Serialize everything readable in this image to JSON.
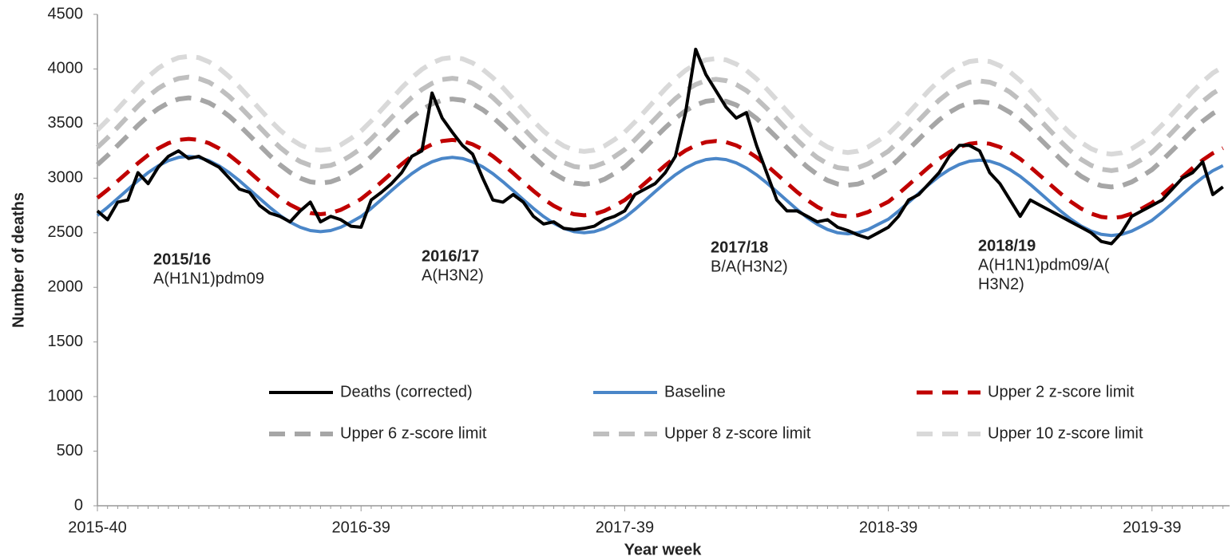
{
  "chart_data": {
    "type": "line",
    "y_label": "Number of deaths",
    "x_label": "Year week",
    "ylim": [
      0,
      4500
    ],
    "yticks": [
      0,
      500,
      1000,
      1500,
      2000,
      2500,
      3000,
      3500,
      4000,
      4500
    ],
    "categories": [
      "2015-40",
      null,
      null,
      null,
      null,
      null,
      null,
      null,
      null,
      null,
      null,
      null,
      null,
      null,
      null,
      null,
      null,
      null,
      null,
      null,
      null,
      null,
      null,
      null,
      null,
      null,
      "2016-39",
      null,
      null,
      null,
      null,
      null,
      null,
      null,
      null,
      null,
      null,
      null,
      null,
      null,
      null,
      null,
      null,
      null,
      null,
      null,
      null,
      null,
      null,
      null,
      null,
      null,
      "2017-39",
      null,
      null,
      null,
      null,
      null,
      null,
      null,
      null,
      null,
      null,
      null,
      null,
      null,
      null,
      null,
      null,
      null,
      null,
      null,
      null,
      null,
      null,
      null,
      null,
      null,
      "2018-39",
      null,
      null,
      null,
      null,
      null,
      null,
      null,
      null,
      null,
      null,
      null,
      null,
      null,
      null,
      null,
      null,
      null,
      null,
      null,
      null,
      null,
      null,
      null,
      null,
      null,
      "2019-39",
      null,
      null,
      null,
      null,
      null,
      null,
      null
    ],
    "series": [
      {
        "name": "Deaths (corrected)",
        "color": "#000000",
        "dashed": false,
        "values": [
          2700,
          2620,
          2780,
          2800,
          3050,
          2950,
          3100,
          3200,
          3250,
          3180,
          3200,
          3150,
          3100,
          3000,
          2900,
          2870,
          2750,
          2680,
          2650,
          2600,
          2700,
          2780,
          2600,
          2650,
          2620,
          2560,
          2550,
          2800,
          2870,
          2950,
          3050,
          3200,
          3250,
          3780,
          3550,
          3420,
          3300,
          3220,
          3000,
          2800,
          2780,
          2850,
          2780,
          2650,
          2580,
          2600,
          2540,
          2530,
          2540,
          2560,
          2620,
          2650,
          2700,
          2850,
          2900,
          2950,
          3050,
          3200,
          3600,
          4180,
          3950,
          3800,
          3650,
          3550,
          3600,
          3300,
          3050,
          2800,
          2700,
          2700,
          2650,
          2600,
          2620,
          2550,
          2520,
          2480,
          2450,
          2500,
          2550,
          2650,
          2800,
          2850,
          2950,
          3050,
          3200,
          3300,
          3300,
          3250,
          3050,
          2950,
          2800,
          2650,
          2800,
          2750,
          2700,
          2650,
          2600,
          2550,
          2500,
          2420,
          2400,
          2500,
          2650,
          2700,
          2750,
          2800,
          2900,
          3000,
          3050,
          3150,
          2850,
          2920
        ]
      },
      {
        "name": "Baseline",
        "color": "#4a86c8",
        "dashed": false,
        "values": [
          2659,
          2733,
          2814,
          2896,
          2977,
          3051,
          3113,
          3160,
          3190,
          3200,
          3190,
          3160,
          3113,
          3051,
          2977,
          2896,
          2814,
          2733,
          2659,
          2597,
          2550,
          2520,
          2510,
          2520,
          2550,
          2597,
          2649,
          2723,
          2804,
          2886,
          2967,
          3041,
          3103,
          3150,
          3180,
          3190,
          3180,
          3150,
          3103,
          3041,
          2967,
          2886,
          2804,
          2723,
          2649,
          2587,
          2540,
          2510,
          2500,
          2510,
          2540,
          2587,
          2639,
          2713,
          2794,
          2876,
          2957,
          3031,
          3093,
          3140,
          3170,
          3180,
          3170,
          3140,
          3093,
          3031,
          2957,
          2876,
          2794,
          2713,
          2639,
          2577,
          2530,
          2500,
          2490,
          2500,
          2530,
          2577,
          2624,
          2698,
          2779,
          2861,
          2942,
          3016,
          3078,
          3125,
          3155,
          3165,
          3155,
          3125,
          3078,
          3016,
          2942,
          2861,
          2779,
          2698,
          2624,
          2562,
          2515,
          2485,
          2475,
          2485,
          2515,
          2562,
          2614,
          2688,
          2769,
          2851,
          2932,
          3006,
          3068,
          3115
        ]
      },
      {
        "name": "Upper 2 z-score limit",
        "color": "#c00000",
        "dashed": true,
        "values": [
          2819,
          2893,
          2974,
          3056,
          3137,
          3211,
          3273,
          3320,
          3350,
          3360,
          3350,
          3320,
          3273,
          3211,
          3137,
          3056,
          2974,
          2893,
          2819,
          2757,
          2710,
          2680,
          2670,
          2680,
          2710,
          2757,
          2809,
          2883,
          2964,
          3046,
          3127,
          3201,
          3263,
          3310,
          3340,
          3350,
          3340,
          3310,
          3263,
          3201,
          3127,
          3046,
          2964,
          2883,
          2809,
          2747,
          2700,
          2670,
          2660,
          2670,
          2700,
          2747,
          2799,
          2873,
          2954,
          3036,
          3117,
          3191,
          3253,
          3300,
          3330,
          3340,
          3330,
          3300,
          3253,
          3191,
          3117,
          3036,
          2954,
          2873,
          2799,
          2737,
          2690,
          2660,
          2650,
          2660,
          2690,
          2737,
          2784,
          2858,
          2939,
          3021,
          3102,
          3176,
          3238,
          3285,
          3315,
          3325,
          3315,
          3285,
          3238,
          3176,
          3102,
          3021,
          2939,
          2858,
          2784,
          2722,
          2675,
          2645,
          2635,
          2645,
          2675,
          2722,
          2774,
          2848,
          2929,
          3011,
          3092,
          3166,
          3228,
          3275
        ]
      },
      {
        "name": "Upper 6 z-score limit",
        "color": "#a6a6a6",
        "dashed": true,
        "values": [
          3123,
          3207,
          3299,
          3391,
          3483,
          3567,
          3637,
          3690,
          3724,
          3735,
          3724,
          3690,
          3637,
          3567,
          3483,
          3391,
          3299,
          3207,
          3123,
          3053,
          3000,
          2966,
          2955,
          2966,
          3000,
          3053,
          3113,
          3197,
          3289,
          3381,
          3473,
          3557,
          3627,
          3680,
          3714,
          3725,
          3714,
          3680,
          3627,
          3557,
          3473,
          3381,
          3289,
          3197,
          3113,
          3043,
          2990,
          2956,
          2945,
          2956,
          2990,
          3043,
          3103,
          3187,
          3279,
          3371,
          3463,
          3547,
          3617,
          3670,
          3704,
          3715,
          3704,
          3670,
          3617,
          3547,
          3463,
          3371,
          3279,
          3187,
          3103,
          3033,
          2980,
          2946,
          2935,
          2946,
          2980,
          3033,
          3088,
          3172,
          3264,
          3356,
          3448,
          3532,
          3602,
          3655,
          3689,
          3700,
          3689,
          3655,
          3602,
          3532,
          3448,
          3356,
          3264,
          3172,
          3088,
          3018,
          2965,
          2931,
          2920,
          2931,
          2965,
          3018,
          3078,
          3162,
          3254,
          3346,
          3438,
          3522,
          3592,
          3645
        ]
      },
      {
        "name": "Upper 8 z-score limit",
        "color": "#bfbfbf",
        "dashed": true,
        "values": [
          3282,
          3370,
          3466,
          3564,
          3660,
          3748,
          3822,
          3878,
          3913,
          3925,
          3913,
          3878,
          3822,
          3748,
          3660,
          3564,
          3466,
          3370,
          3282,
          3208,
          3152,
          3117,
          3105,
          3117,
          3152,
          3208,
          3272,
          3360,
          3456,
          3554,
          3650,
          3738,
          3812,
          3868,
          3903,
          3915,
          3903,
          3868,
          3812,
          3738,
          3650,
          3554,
          3456,
          3360,
          3272,
          3198,
          3142,
          3107,
          3095,
          3107,
          3142,
          3198,
          3262,
          3350,
          3446,
          3544,
          3640,
          3728,
          3802,
          3858,
          3893,
          3905,
          3893,
          3858,
          3802,
          3728,
          3640,
          3544,
          3446,
          3350,
          3262,
          3188,
          3132,
          3097,
          3085,
          3097,
          3132,
          3188,
          3247,
          3335,
          3431,
          3529,
          3625,
          3713,
          3787,
          3843,
          3878,
          3890,
          3878,
          3843,
          3787,
          3713,
          3625,
          3529,
          3431,
          3335,
          3247,
          3173,
          3117,
          3082,
          3070,
          3082,
          3117,
          3173,
          3237,
          3325,
          3421,
          3519,
          3615,
          3703,
          3777,
          3833
        ]
      },
      {
        "name": "Upper 10 z-score limit",
        "color": "#d9d9d9",
        "dashed": true,
        "values": [
          3441,
          3533,
          3634,
          3736,
          3837,
          3929,
          4007,
          4065,
          4103,
          4115,
          4103,
          4065,
          4007,
          3929,
          3837,
          3736,
          3634,
          3533,
          3441,
          3363,
          3305,
          3267,
          3255,
          3267,
          3305,
          3363,
          3431,
          3523,
          3624,
          3726,
          3827,
          3919,
          3997,
          4055,
          4093,
          4105,
          4093,
          4055,
          3997,
          3919,
          3827,
          3726,
          3624,
          3523,
          3431,
          3353,
          3295,
          3257,
          3245,
          3257,
          3295,
          3353,
          3421,
          3513,
          3614,
          3716,
          3817,
          3909,
          3987,
          4045,
          4083,
          4095,
          4083,
          4045,
          3987,
          3909,
          3817,
          3716,
          3614,
          3513,
          3421,
          3343,
          3285,
          3247,
          3235,
          3247,
          3285,
          3343,
          3406,
          3498,
          3599,
          3701,
          3802,
          3894,
          3972,
          4030,
          4068,
          4080,
          4068,
          4030,
          3972,
          3894,
          3802,
          3701,
          3599,
          3498,
          3406,
          3328,
          3270,
          3232,
          3220,
          3232,
          3270,
          3328,
          3396,
          3488,
          3589,
          3691,
          3792,
          3884,
          3962,
          4020
        ]
      }
    ],
    "annotations": [
      {
        "title": "2015/16",
        "lines": [
          "A(H1N1)pdm09"
        ]
      },
      {
        "title": "2016/17",
        "lines": [
          "A(H3N2)"
        ]
      },
      {
        "title": "2017/18",
        "lines": [
          "B/A(H3N2)"
        ]
      },
      {
        "title": "2018/19",
        "lines": [
          "A(H1N1)pdm09/A(",
          "H3N2)"
        ]
      }
    ]
  }
}
